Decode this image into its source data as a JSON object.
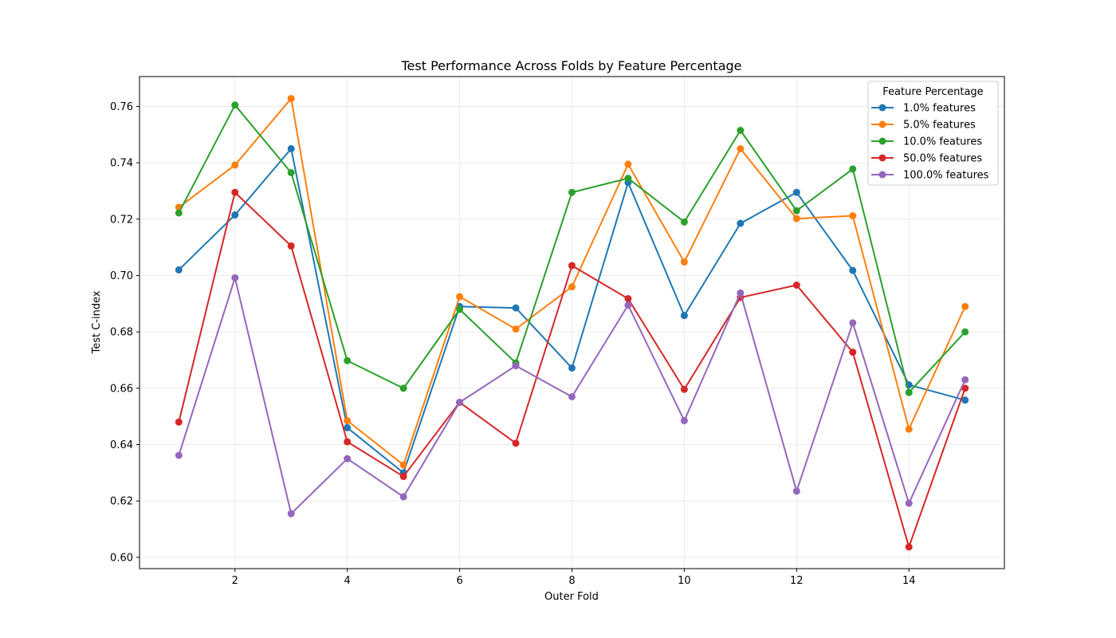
{
  "chart_data": {
    "type": "line",
    "title": "Test Performance Across Folds by Feature Percentage",
    "xlabel": "Outer Fold",
    "ylabel": "Test C-index",
    "xlim": [
      0.3,
      15.7
    ],
    "ylim": [
      0.596,
      0.7706
    ],
    "xticks": [
      2,
      4,
      6,
      8,
      10,
      12,
      14
    ],
    "yticks": [
      0.6,
      0.62,
      0.64,
      0.66,
      0.68,
      0.7,
      0.72,
      0.74,
      0.76
    ],
    "ytick_labels": [
      "0.60",
      "0.62",
      "0.64",
      "0.66",
      "0.68",
      "0.70",
      "0.72",
      "0.74",
      "0.76"
    ],
    "grid": true,
    "legend": {
      "title": "Feature Percentage",
      "placement": "top-right"
    },
    "x": [
      1,
      2,
      3,
      4,
      5,
      6,
      7,
      8,
      9,
      10,
      11,
      12,
      13,
      14,
      15
    ],
    "series": [
      {
        "name": "1.0% features",
        "color": "#1f77b4",
        "values": [
          0.702,
          0.7215,
          0.745,
          0.646,
          0.63,
          0.689,
          0.6885,
          0.6672,
          0.733,
          0.6858,
          0.7185,
          0.7295,
          0.7018,
          0.6612,
          0.6558
        ]
      },
      {
        "name": "5.0% features",
        "color": "#ff7f0e",
        "values": [
          0.7242,
          0.7392,
          0.7628,
          0.6485,
          0.6328,
          0.6925,
          0.681,
          0.696,
          0.7395,
          0.7048,
          0.745,
          0.7202,
          0.7212,
          0.6455,
          0.689
        ]
      },
      {
        "name": "10.0% features",
        "color": "#2ca02c",
        "values": [
          0.7222,
          0.7605,
          0.7365,
          0.6698,
          0.66,
          0.688,
          0.669,
          0.7295,
          0.7345,
          0.719,
          0.7515,
          0.723,
          0.7378,
          0.6585,
          0.68
        ]
      },
      {
        "name": "50.0% features",
        "color": "#d62728",
        "values": [
          0.648,
          0.7295,
          0.7105,
          0.641,
          0.6287,
          0.655,
          0.6405,
          0.7035,
          0.6918,
          0.6596,
          0.6922,
          0.6966,
          0.6728,
          0.6037,
          0.66
        ]
      },
      {
        "name": "100.0% features",
        "color": "#9467bd",
        "values": [
          0.6362,
          0.6992,
          0.6155,
          0.635,
          0.6215,
          0.655,
          0.668,
          0.657,
          0.6895,
          0.6485,
          0.6938,
          0.6235,
          0.6832,
          0.6192,
          0.663
        ]
      }
    ]
  }
}
